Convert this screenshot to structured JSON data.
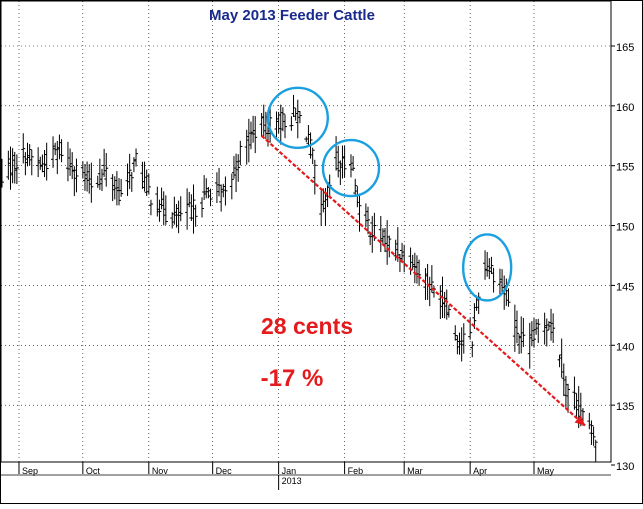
{
  "chart_data": {
    "type": "ohlc",
    "title": "May 2013 Feeder Cattle",
    "title_color": "#1a2a8c",
    "ylim": [
      130,
      167
    ],
    "yticks": [
      130,
      135,
      140,
      145,
      150,
      155,
      160,
      165
    ],
    "y_axis_position": "right",
    "grid": "dotted",
    "x_labels": [
      {
        "label": "Sep",
        "date": "2012-09-01"
      },
      {
        "label": "Oct",
        "date": "2012-10-01"
      },
      {
        "label": "Nov",
        "date": "2012-11-01"
      },
      {
        "label": "Dec",
        "date": "2012-12-01"
      },
      {
        "label": "Jan",
        "date": "2013-01-01"
      },
      {
        "label": "Feb",
        "date": "2013-02-01"
      },
      {
        "label": "Mar",
        "date": "2013-03-01"
      },
      {
        "label": "Apr",
        "date": "2013-04-01"
      },
      {
        "label": "May",
        "date": "2013-05-01"
      }
    ],
    "year_label": "2013",
    "bar_color": "#000000",
    "price_path": [
      [
        "2012-08-22",
        154.0
      ],
      [
        "2012-09-04",
        156.0
      ],
      [
        "2012-09-12",
        155.0
      ],
      [
        "2012-09-20",
        156.5
      ],
      [
        "2012-09-28",
        154.5
      ],
      [
        "2012-10-05",
        153.5
      ],
      [
        "2012-10-12",
        154.5
      ],
      [
        "2012-10-19",
        152.5
      ],
      [
        "2012-10-26",
        155.5
      ],
      [
        "2012-11-02",
        152.5
      ],
      [
        "2012-11-09",
        151.0
      ],
      [
        "2012-11-16",
        150.8
      ],
      [
        "2012-11-23",
        151.5
      ],
      [
        "2012-11-30",
        153.0
      ],
      [
        "2012-12-07",
        152.5
      ],
      [
        "2012-12-14",
        156.0
      ],
      [
        "2012-12-21",
        158.0
      ],
      [
        "2012-12-28",
        158.5
      ],
      [
        "2013-01-05",
        158.8
      ],
      [
        "2013-01-10",
        159.3
      ],
      [
        "2013-01-15",
        157.5
      ],
      [
        "2013-01-18",
        154.5
      ],
      [
        "2013-01-21",
        151.0
      ],
      [
        "2013-01-24",
        152.5
      ],
      [
        "2013-01-28",
        155.5
      ],
      [
        "2013-01-31",
        155.0
      ],
      [
        "2013-02-04",
        155.5
      ],
      [
        "2013-02-08",
        151.5
      ],
      [
        "2013-02-14",
        149.5
      ],
      [
        "2013-02-22",
        148.5
      ],
      [
        "2013-03-01",
        147.5
      ],
      [
        "2013-03-08",
        146.5
      ],
      [
        "2013-03-15",
        144.5
      ],
      [
        "2013-03-21",
        143.5
      ],
      [
        "2013-03-26",
        140.5
      ],
      [
        "2013-04-02",
        140.5
      ],
      [
        "2013-04-05",
        144.5
      ],
      [
        "2013-04-09",
        147.0
      ],
      [
        "2013-04-14",
        145.5
      ],
      [
        "2013-04-18",
        144.5
      ],
      [
        "2013-04-22",
        141.5
      ],
      [
        "2013-04-28",
        139.5
      ],
      [
        "2013-05-03",
        141.5
      ],
      [
        "2013-05-08",
        142.0
      ],
      [
        "2013-05-12",
        140.5
      ],
      [
        "2013-05-16",
        136.5
      ],
      [
        "2013-05-20",
        135.5
      ],
      [
        "2013-05-23",
        134.5
      ],
      [
        "2013-05-27",
        133.0
      ],
      [
        "2013-05-30",
        132.0
      ]
    ],
    "trend_arrow": {
      "from": [
        "2012-12-24",
        157.5
      ],
      "to": [
        "2013-05-25",
        133.3
      ],
      "color": "#e41a1c",
      "style": "dashed"
    },
    "circles": [
      {
        "center": [
          "2013-01-10",
          159.0
        ],
        "color": "#1aa0e0"
      },
      {
        "center": [
          "2013-02-04",
          154.8
        ],
        "color": "#1aa0e0"
      },
      {
        "center": [
          "2013-04-09",
          146.5
        ],
        "color": "#1aa0e0"
      }
    ],
    "annotations": [
      {
        "text": "28 cents",
        "color": "#e41a1c"
      },
      {
        "text": "-17 %",
        "color": "#e41a1c"
      }
    ]
  }
}
